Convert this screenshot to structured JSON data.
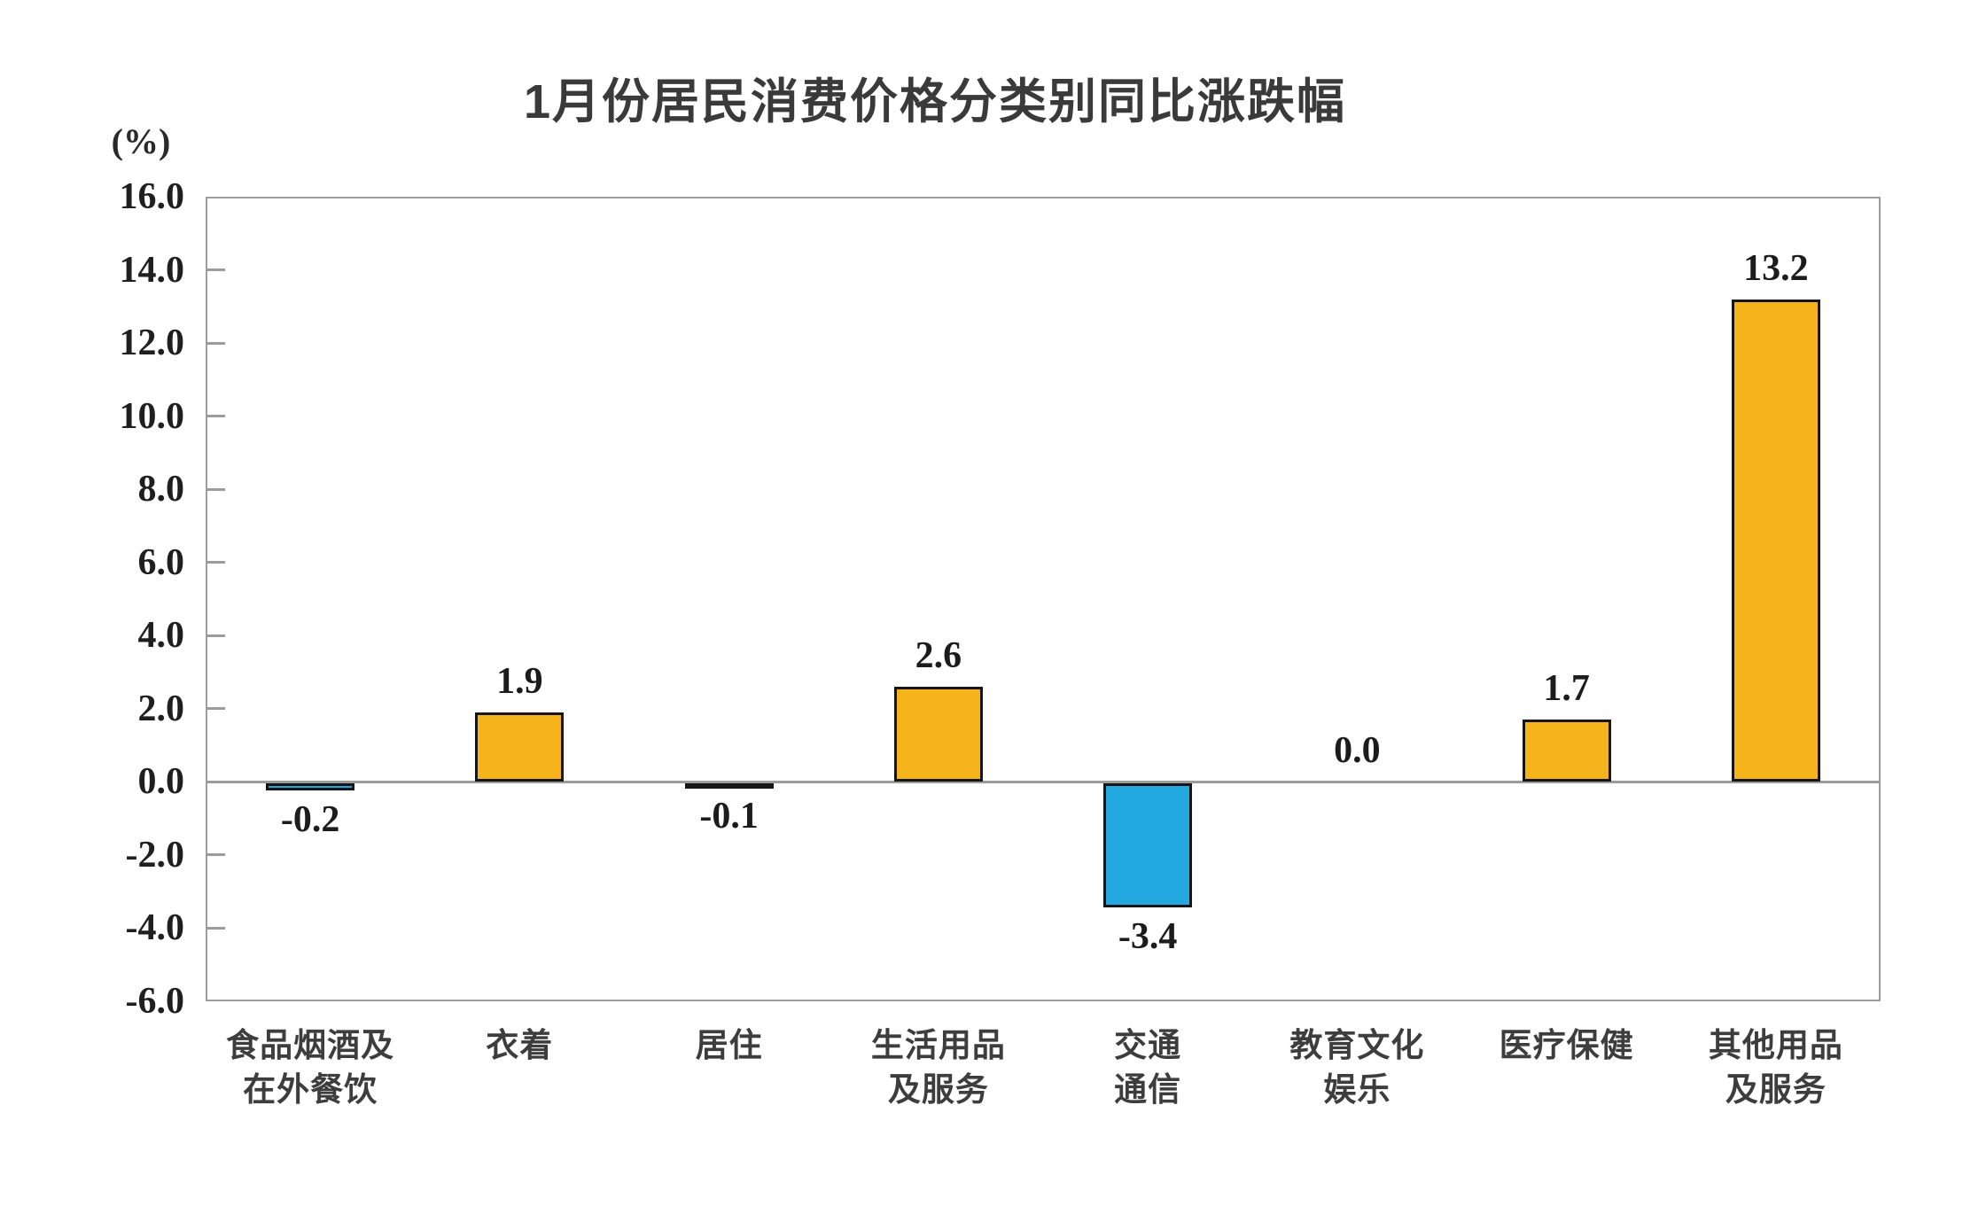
{
  "chart_data": {
    "type": "bar",
    "title": "1月份居民消费价格分类别同比涨跌幅",
    "unit_label": "(%)",
    "categories": [
      "食品烟酒及\n在外餐饮",
      "衣着",
      "居住",
      "生活用品\n及服务",
      "交通\n通信",
      "教育文化\n娱乐",
      "医疗保健",
      "其他用品\n及服务"
    ],
    "values": [
      -0.2,
      1.9,
      -0.1,
      2.6,
      -3.4,
      0.0,
      1.7,
      13.2
    ],
    "value_labels": [
      "-0.2",
      "1.9",
      "-0.1",
      "2.6",
      "-3.4",
      "0.0",
      "1.7",
      "13.2"
    ],
    "ylabel": "(%)",
    "xlabel": "",
    "ylim": [
      -6.0,
      16.0
    ],
    "y_tick_step": 2.0,
    "y_tick_labels": [
      "16.0",
      "14.0",
      "12.0",
      "10.0",
      "8.0",
      "6.0",
      "4.0",
      "2.0",
      "0.0",
      "-2.0",
      "-4.0",
      "-6.0"
    ],
    "grid": false,
    "legend": false,
    "colors": {
      "positive_bar": "#F5B41C",
      "negative_bar": "#23A9E0",
      "bar_border": "#151515",
      "axis": "#9C9C9C",
      "text": "#1F1F1F"
    }
  }
}
